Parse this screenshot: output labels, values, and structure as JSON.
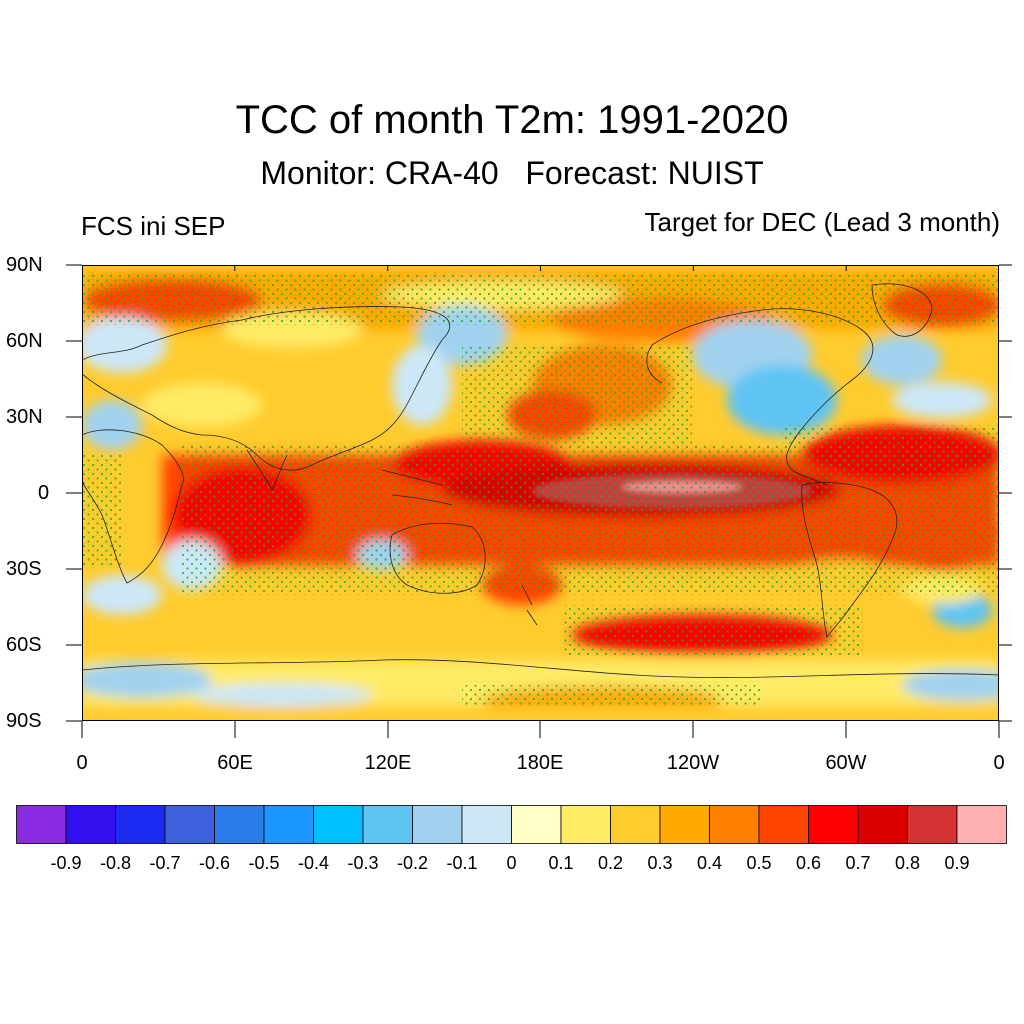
{
  "title": "TCC of month T2m: 1991-2020",
  "subtitle": "Monitor: CRA-40   Forecast: NUIST",
  "left_label": "FCS ini SEP",
  "right_label": "Target for DEC (Lead 3 month)",
  "lat_ticks": [
    "90N",
    "60N",
    "30N",
    "0",
    "30S",
    "60S",
    "90S"
  ],
  "lon_ticks": [
    "0",
    "60E",
    "120E",
    "180E",
    "120W",
    "60W",
    "0"
  ],
  "colorbar": {
    "colors": [
      "#8a2be2",
      "#3311ee",
      "#1c2bef",
      "#3d60dd",
      "#2b7ce9",
      "#1b96ff",
      "#00bfff",
      "#5ec4f4",
      "#a0d2ef",
      "#cce7f8",
      "#ffffc8",
      "#ffeb66",
      "#ffcc2e",
      "#ffaa00",
      "#ff7f00",
      "#ff4500",
      "#ff0000",
      "#d90000",
      "#d43333",
      "#ffb0b0"
    ],
    "labels": [
      "-0.9",
      "-0.8",
      "-0.7",
      "-0.6",
      "-0.5",
      "-0.4",
      "-0.3",
      "-0.2",
      "-0.1",
      "0",
      "0.1",
      "0.2",
      "0.3",
      "0.4",
      "0.5",
      "0.6",
      "0.7",
      "0.8",
      "0.9"
    ]
  },
  "stipple_color": "#22aa22"
}
